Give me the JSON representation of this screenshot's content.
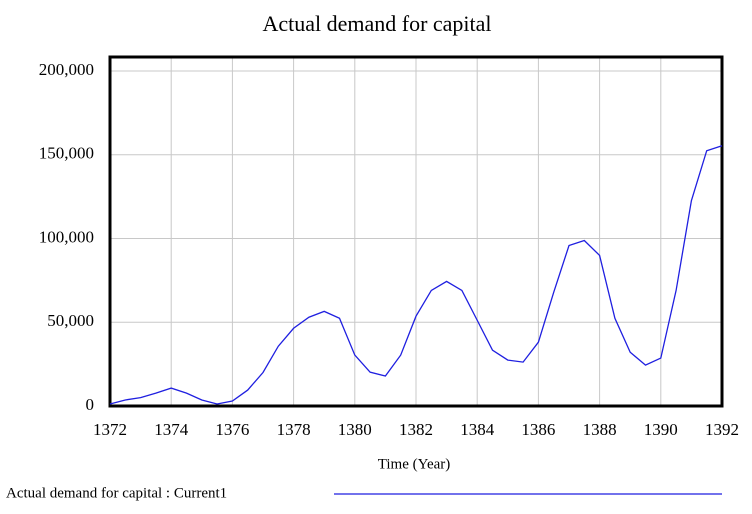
{
  "chart_data": {
    "type": "line",
    "title": "Actual demand for capital",
    "x_label": "Time (Year)",
    "x": [
      1372,
      1372.5,
      1373,
      1373.5,
      1374,
      1374.5,
      1375,
      1375.5,
      1376,
      1376.5,
      1377,
      1377.5,
      1378,
      1378.5,
      1379,
      1379.5,
      1380,
      1380.5,
      1381,
      1381.5,
      1382,
      1382.5,
      1383,
      1383.5,
      1384,
      1384.5,
      1385,
      1385.5,
      1386,
      1386.5,
      1387,
      1387.5,
      1388,
      1388.5,
      1389,
      1389.5,
      1390,
      1390.5,
      1391,
      1391.5,
      1392
    ],
    "series": [
      {
        "name": "Actual demand for capital : Current1",
        "color": "#1f1fe0",
        "values": [
          1200,
          3600,
          5000,
          7700,
          10700,
          7700,
          3600,
          1200,
          3000,
          9500,
          20000,
          35700,
          46400,
          53000,
          56500,
          52400,
          30400,
          20200,
          17900,
          30400,
          53600,
          69000,
          74400,
          69000,
          51200,
          33300,
          27400,
          26200,
          38100,
          67900,
          95800,
          98800,
          89900,
          52400,
          32100,
          24400,
          28600,
          69000,
          122600,
          152400,
          155400
        ]
      }
    ],
    "xlim": [
      1372,
      1392
    ],
    "xticks": [
      1372,
      1374,
      1376,
      1378,
      1380,
      1382,
      1384,
      1386,
      1388,
      1390,
      1392
    ],
    "ylim": [
      0,
      200000
    ],
    "yticks": [
      {
        "value": 0,
        "label": "0"
      },
      {
        "value": 50000,
        "label": "50,000"
      },
      {
        "value": 100000,
        "label": "100,000"
      },
      {
        "value": 150000,
        "label": "150,000"
      },
      {
        "value": 200000,
        "label": "200,000"
      }
    ],
    "grid": true
  }
}
